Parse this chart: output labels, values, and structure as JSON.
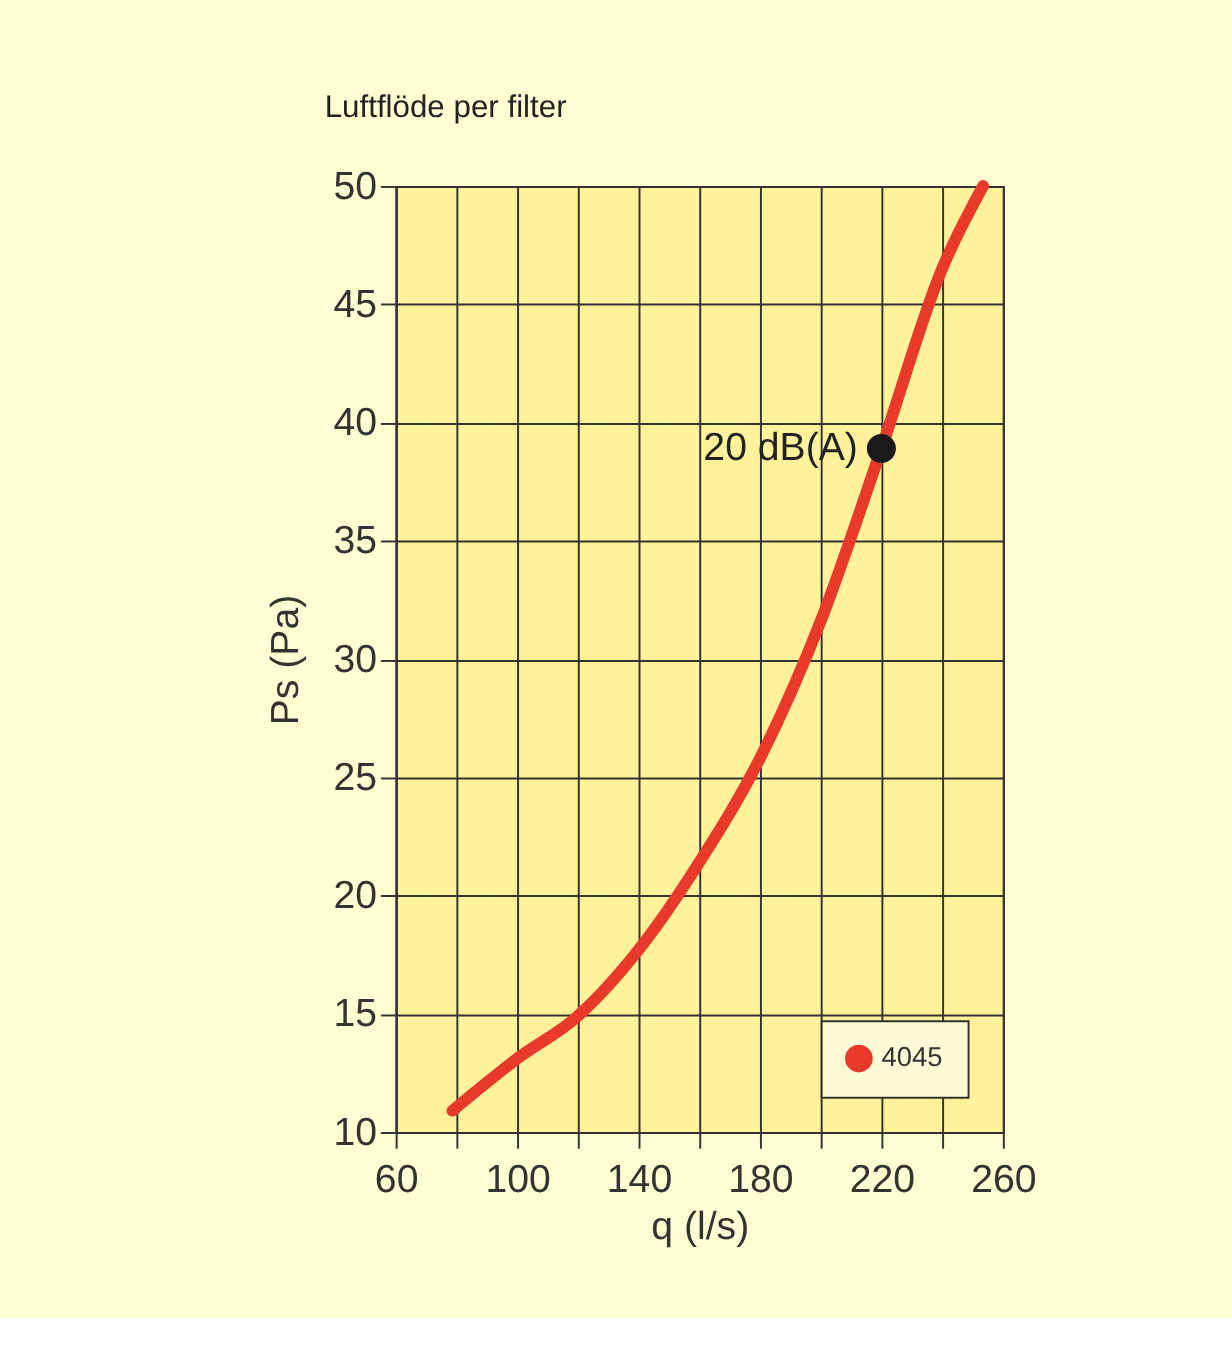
{
  "chart_data": {
    "type": "line",
    "title": "Luftflöde per filter",
    "xlabel": "q (l/s)",
    "ylabel": "Ps (Pa)",
    "series": [
      {
        "name": "4045",
        "color": "#e8392a",
        "x": [
          78.7,
          100,
          120,
          140,
          160,
          180,
          200,
          220,
          240,
          253.5
        ],
        "values": [
          10.9,
          13.1,
          14.9,
          17.7,
          21.4,
          25.8,
          31.6,
          38.9,
          46.5,
          50
        ]
      },
      {
        "type": "scatter",
        "color": "#1a1a1a",
        "x": [
          220
        ],
        "values": [
          38.9
        ]
      }
    ],
    "annotations": [
      {
        "text": "20 dB(A)",
        "x": 220,
        "y": 38.9
      }
    ],
    "xlim": [
      60,
      260
    ],
    "ylim": [
      10,
      50
    ],
    "xticks": [
      60,
      {
        "value": 80,
        "label": null
      },
      100,
      {
        "value": 120,
        "label": null
      },
      140,
      {
        "value": 160,
        "label": null
      },
      180,
      {
        "value": 200,
        "label": null
      },
      220,
      {
        "value": 240,
        "label": null
      },
      260
    ],
    "yticks": [
      10,
      15,
      20,
      25,
      30,
      35,
      40,
      45,
      50
    ],
    "grid": true,
    "legend": "bottom right",
    "line_style": "solid"
  }
}
